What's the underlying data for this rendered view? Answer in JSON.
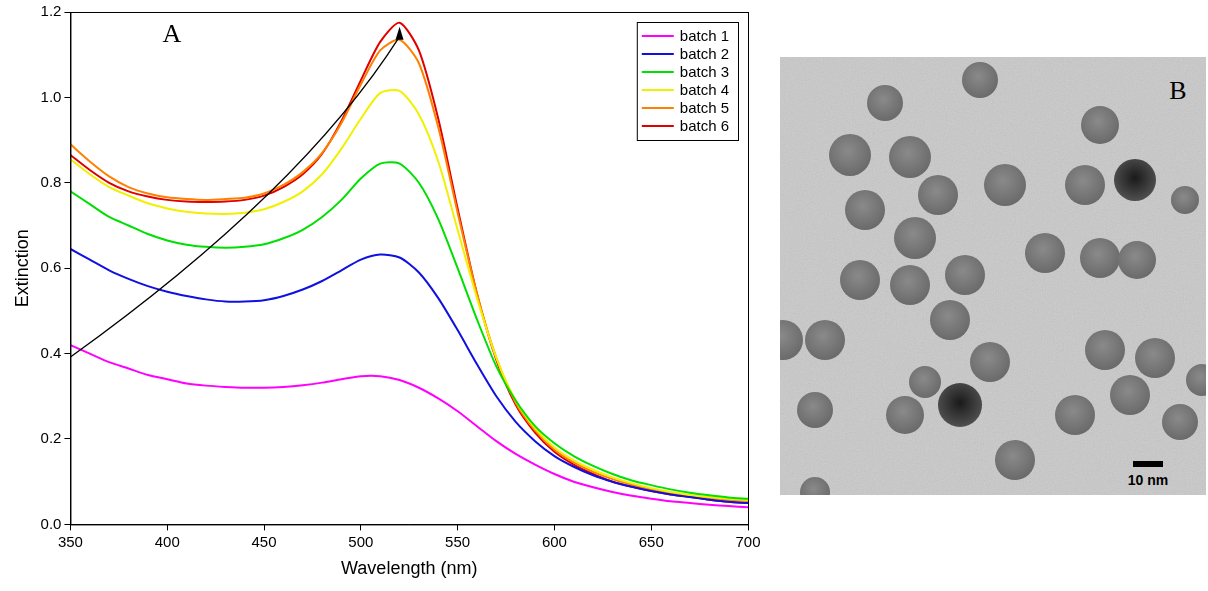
{
  "chart_data": {
    "type": "line",
    "x_label": "Wavelength (nm)",
    "y_label": "Extinction",
    "annotations": [
      "A"
    ],
    "legend": "upper right",
    "grid": false,
    "xlim": [
      350,
      700
    ],
    "xticks": [
      350,
      400,
      450,
      500,
      550,
      600,
      650,
      700
    ],
    "ylim": [
      0,
      1.2
    ],
    "yticks": [
      {
        "value": 0,
        "label": "0.0"
      },
      0.2,
      0.4,
      0.6,
      0.8,
      {
        "value": 1,
        "label": "1.0"
      },
      1.2
    ],
    "x": [
      350,
      360,
      370,
      380,
      390,
      400,
      410,
      420,
      430,
      440,
      450,
      460,
      470,
      480,
      490,
      500,
      510,
      520,
      530,
      540,
      550,
      560,
      570,
      580,
      590,
      600,
      610,
      620,
      630,
      640,
      650,
      660,
      670,
      680,
      690,
      700
    ],
    "series": [
      {
        "name": "batch 1",
        "color": "#ff00ff",
        "line_style": "solid",
        "values": [
          0.42,
          0.4,
          0.38,
          0.365,
          0.35,
          0.34,
          0.33,
          0.325,
          0.322,
          0.32,
          0.32,
          0.322,
          0.326,
          0.332,
          0.34,
          0.347,
          0.347,
          0.338,
          0.32,
          0.295,
          0.265,
          0.23,
          0.195,
          0.165,
          0.14,
          0.118,
          0.1,
          0.087,
          0.076,
          0.067,
          0.06,
          0.054,
          0.05,
          0.046,
          0.043,
          0.04
        ]
      },
      {
        "name": "batch 2",
        "color": "#1010e0",
        "line_style": "solid",
        "values": [
          0.645,
          0.62,
          0.595,
          0.575,
          0.558,
          0.545,
          0.535,
          0.527,
          0.522,
          0.522,
          0.525,
          0.535,
          0.55,
          0.57,
          0.595,
          0.62,
          0.632,
          0.625,
          0.59,
          0.53,
          0.455,
          0.375,
          0.3,
          0.24,
          0.195,
          0.16,
          0.135,
          0.115,
          0.1,
          0.088,
          0.078,
          0.07,
          0.064,
          0.058,
          0.053,
          0.05
        ]
      },
      {
        "name": "batch 3",
        "color": "#00e000",
        "line_style": "solid",
        "values": [
          0.78,
          0.75,
          0.72,
          0.7,
          0.68,
          0.665,
          0.655,
          0.65,
          0.648,
          0.65,
          0.656,
          0.67,
          0.69,
          0.72,
          0.76,
          0.81,
          0.845,
          0.845,
          0.8,
          0.715,
          0.6,
          0.48,
          0.37,
          0.29,
          0.23,
          0.19,
          0.16,
          0.137,
          0.118,
          0.103,
          0.092,
          0.082,
          0.074,
          0.068,
          0.063,
          0.06
        ]
      },
      {
        "name": "batch 4",
        "color": "#f0f000",
        "line_style": "solid",
        "values": [
          0.855,
          0.82,
          0.79,
          0.77,
          0.752,
          0.74,
          0.732,
          0.728,
          0.727,
          0.73,
          0.738,
          0.755,
          0.78,
          0.82,
          0.88,
          0.95,
          1.01,
          1.015,
          0.96,
          0.85,
          0.69,
          0.53,
          0.39,
          0.29,
          0.225,
          0.18,
          0.15,
          0.128,
          0.11,
          0.096,
          0.085,
          0.076,
          0.069,
          0.064,
          0.06,
          0.057
        ]
      },
      {
        "name": "batch 5",
        "color": "#ff8000",
        "line_style": "solid",
        "values": [
          0.89,
          0.85,
          0.815,
          0.79,
          0.775,
          0.766,
          0.762,
          0.76,
          0.762,
          0.765,
          0.775,
          0.795,
          0.825,
          0.87,
          0.94,
          1.03,
          1.11,
          1.135,
          1.08,
          0.93,
          0.73,
          0.54,
          0.39,
          0.285,
          0.22,
          0.175,
          0.145,
          0.123,
          0.106,
          0.093,
          0.082,
          0.074,
          0.067,
          0.062,
          0.058,
          0.055
        ]
      },
      {
        "name": "batch 6",
        "color": "#e00000",
        "line_style": "solid",
        "values": [
          0.865,
          0.83,
          0.8,
          0.78,
          0.768,
          0.76,
          0.756,
          0.755,
          0.756,
          0.76,
          0.77,
          0.79,
          0.82,
          0.868,
          0.945,
          1.04,
          1.13,
          1.175,
          1.11,
          0.95,
          0.74,
          0.54,
          0.385,
          0.28,
          0.215,
          0.17,
          0.14,
          0.118,
          0.1,
          0.088,
          0.078,
          0.07,
          0.064,
          0.058,
          0.053,
          0.05
        ]
      }
    ]
  },
  "image": {
    "panel_label": "B",
    "scale_bar_label": "10 nm"
  }
}
